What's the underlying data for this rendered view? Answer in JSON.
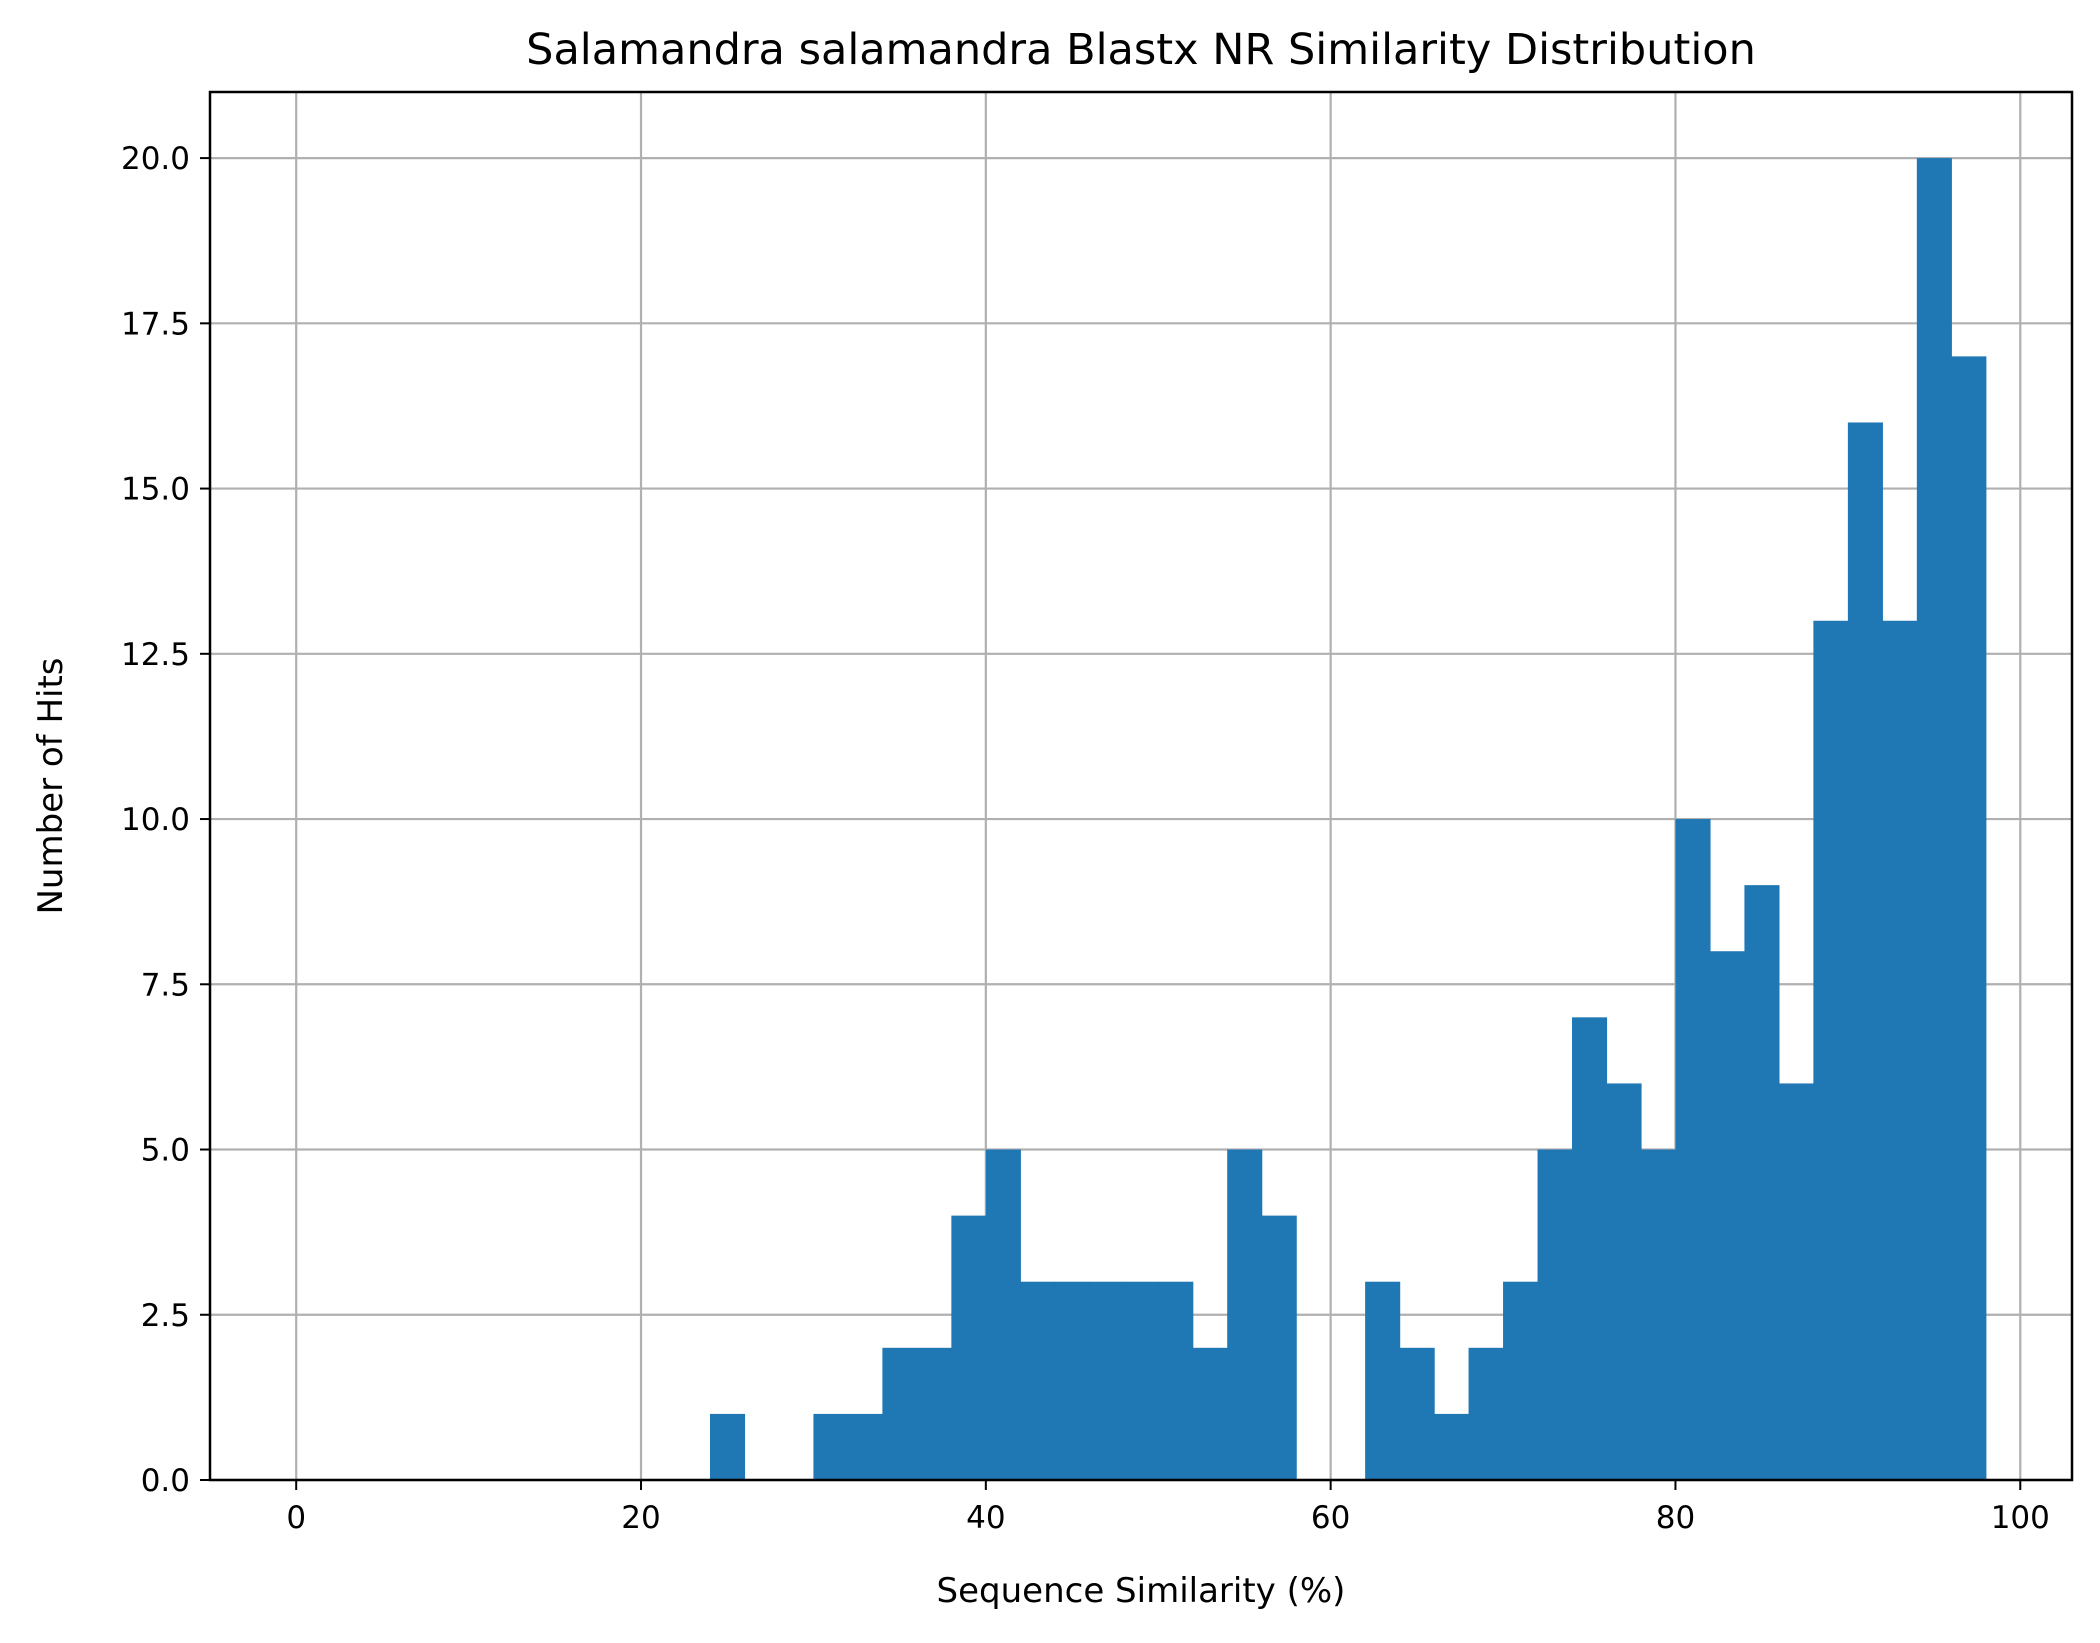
{
  "chart_data": {
    "type": "bar",
    "title": "Salamandra salamandra Blastx NR Similarity Distribution",
    "xlabel": "Sequence Similarity (%)",
    "ylabel": "Number of Hits",
    "xlim": [
      -5,
      103
    ],
    "ylim": [
      0,
      21
    ],
    "xticks": [
      0,
      20,
      40,
      60,
      80,
      100
    ],
    "xtick_labels": [
      "0",
      "20",
      "40",
      "60",
      "80",
      "100"
    ],
    "yticks": [
      0,
      2.5,
      5,
      7.5,
      10,
      12.5,
      15,
      17.5,
      20
    ],
    "ytick_labels": [
      "0.0",
      "2.5",
      "5.0",
      "7.5",
      "10.0",
      "12.5",
      "15.0",
      "17.5",
      "20.0"
    ],
    "grid": true,
    "bin_width": 2,
    "bins": [
      {
        "start": 24,
        "count": 1
      },
      {
        "start": 26,
        "count": 0
      },
      {
        "start": 28,
        "count": 0
      },
      {
        "start": 30,
        "count": 1
      },
      {
        "start": 32,
        "count": 1
      },
      {
        "start": 34,
        "count": 2
      },
      {
        "start": 36,
        "count": 2
      },
      {
        "start": 38,
        "count": 4
      },
      {
        "start": 40,
        "count": 5
      },
      {
        "start": 42,
        "count": 3
      },
      {
        "start": 44,
        "count": 3
      },
      {
        "start": 46,
        "count": 3
      },
      {
        "start": 48,
        "count": 3
      },
      {
        "start": 50,
        "count": 3
      },
      {
        "start": 52,
        "count": 2
      },
      {
        "start": 54,
        "count": 5
      },
      {
        "start": 56,
        "count": 4
      },
      {
        "start": 58,
        "count": 0
      },
      {
        "start": 60,
        "count": 0
      },
      {
        "start": 62,
        "count": 3
      },
      {
        "start": 64,
        "count": 2
      },
      {
        "start": 66,
        "count": 1
      },
      {
        "start": 68,
        "count": 2
      },
      {
        "start": 70,
        "count": 3
      },
      {
        "start": 72,
        "count": 5
      },
      {
        "start": 74,
        "count": 7
      },
      {
        "start": 76,
        "count": 6
      },
      {
        "start": 78,
        "count": 5
      },
      {
        "start": 80,
        "count": 10
      },
      {
        "start": 82,
        "count": 8
      },
      {
        "start": 84,
        "count": 9
      },
      {
        "start": 86,
        "count": 6
      },
      {
        "start": 88,
        "count": 13
      },
      {
        "start": 90,
        "count": 16
      },
      {
        "start": 92,
        "count": 13
      },
      {
        "start": 94,
        "count": 20
      },
      {
        "start": 96,
        "count": 17
      }
    ],
    "bar_color": "#1f77b4",
    "grid_color": "#b0b0b0"
  }
}
